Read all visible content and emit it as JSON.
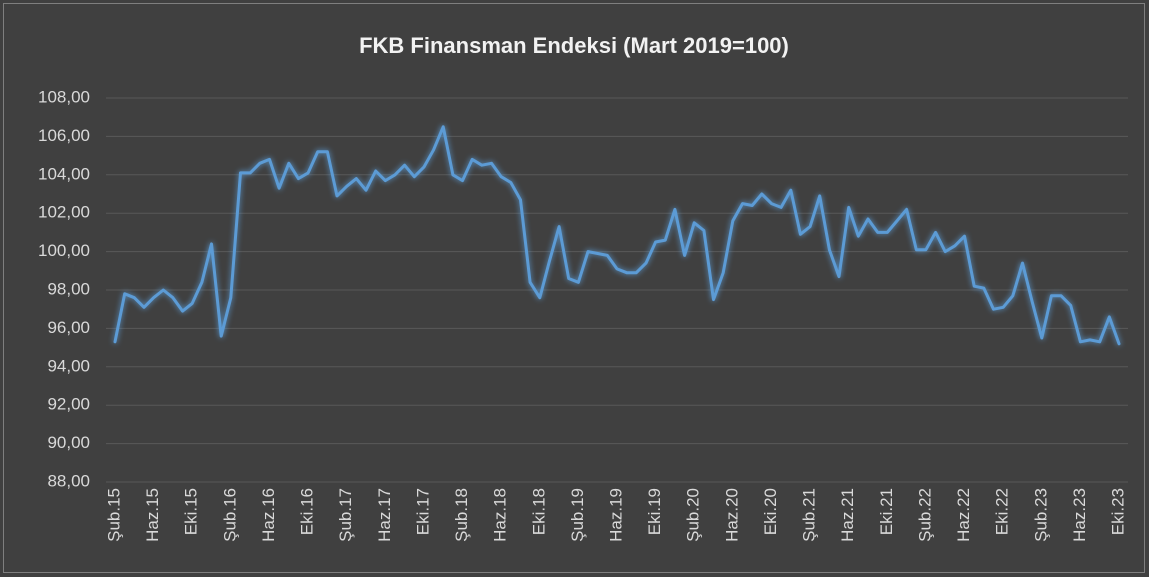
{
  "chart_data": {
    "type": "line",
    "title": "FKB Finansman Endeksi (Mart 2019=100)",
    "categories": [
      "Şub.15",
      null,
      null,
      null,
      "Haz.15",
      null,
      null,
      null,
      "Eki.15",
      null,
      null,
      null,
      "Şub.16",
      null,
      null,
      null,
      "Haz.16",
      null,
      null,
      null,
      "Eki.16",
      null,
      null,
      null,
      "Şub.17",
      null,
      null,
      null,
      "Haz.17",
      null,
      null,
      null,
      "Eki.17",
      null,
      null,
      null,
      "Şub.18",
      null,
      null,
      null,
      "Haz.18",
      null,
      null,
      null,
      "Eki.18",
      null,
      null,
      null,
      "Şub.19",
      null,
      null,
      null,
      "Haz.19",
      null,
      null,
      null,
      "Eki.19",
      null,
      null,
      null,
      "Şub.20",
      null,
      null,
      null,
      "Haz.20",
      null,
      null,
      null,
      "Eki.20",
      null,
      null,
      null,
      "Şub.21",
      null,
      null,
      null,
      "Haz.21",
      null,
      null,
      null,
      "Eki.21",
      null,
      null,
      null,
      "Şub.22",
      null,
      null,
      null,
      "Haz.22",
      null,
      null,
      null,
      "Eki.22",
      null,
      null,
      null,
      "Şub.23",
      null,
      null,
      null,
      "Haz.23",
      null,
      null,
      null,
      "Eki.23"
    ],
    "values": [
      95.3,
      97.8,
      97.6,
      97.1,
      97.6,
      98.0,
      97.6,
      96.9,
      97.3,
      98.4,
      100.4,
      95.6,
      97.6,
      104.1,
      104.1,
      104.6,
      104.8,
      103.3,
      104.6,
      103.8,
      104.1,
      105.2,
      105.2,
      102.9,
      103.4,
      103.8,
      103.2,
      104.2,
      103.7,
      104.0,
      104.5,
      103.9,
      104.4,
      105.3,
      106.5,
      104.0,
      103.7,
      104.8,
      104.5,
      104.6,
      103.9,
      103.6,
      102.7,
      98.4,
      97.6,
      99.5,
      101.3,
      98.6,
      98.4,
      100.0,
      99.9,
      99.8,
      99.1,
      98.9,
      98.9,
      99.4,
      100.5,
      100.6,
      102.2,
      99.8,
      101.5,
      101.1,
      97.5,
      98.9,
      101.6,
      102.5,
      102.4,
      103.0,
      102.5,
      102.3,
      103.2,
      100.9,
      101.3,
      102.9,
      100.1,
      98.7,
      102.3,
      100.8,
      101.7,
      101.0,
      101.0,
      101.6,
      102.2,
      100.1,
      100.1,
      101.0,
      100.0,
      100.3,
      100.8,
      98.2,
      98.1,
      97.0,
      97.1,
      97.7,
      99.4,
      97.4,
      95.5,
      97.7,
      97.7,
      97.2,
      95.3,
      95.4,
      95.3,
      96.6,
      95.2
    ],
    "color": "#5b9bd5",
    "ylim": [
      88,
      108
    ],
    "yticks": [
      {
        "value": 88,
        "label": "88,00"
      },
      {
        "value": 90,
        "label": "90,00"
      },
      {
        "value": 92,
        "label": "92,00"
      },
      {
        "value": 94,
        "label": "94,00"
      },
      {
        "value": 96,
        "label": "96,00"
      },
      {
        "value": 98,
        "label": "98,00"
      },
      {
        "value": 100,
        "label": "100,00"
      },
      {
        "value": 102,
        "label": "102,00"
      },
      {
        "value": 104,
        "label": "104,00"
      },
      {
        "value": 106,
        "label": "106,00"
      },
      {
        "value": 108,
        "label": "108,00"
      }
    ],
    "grid": true
  }
}
